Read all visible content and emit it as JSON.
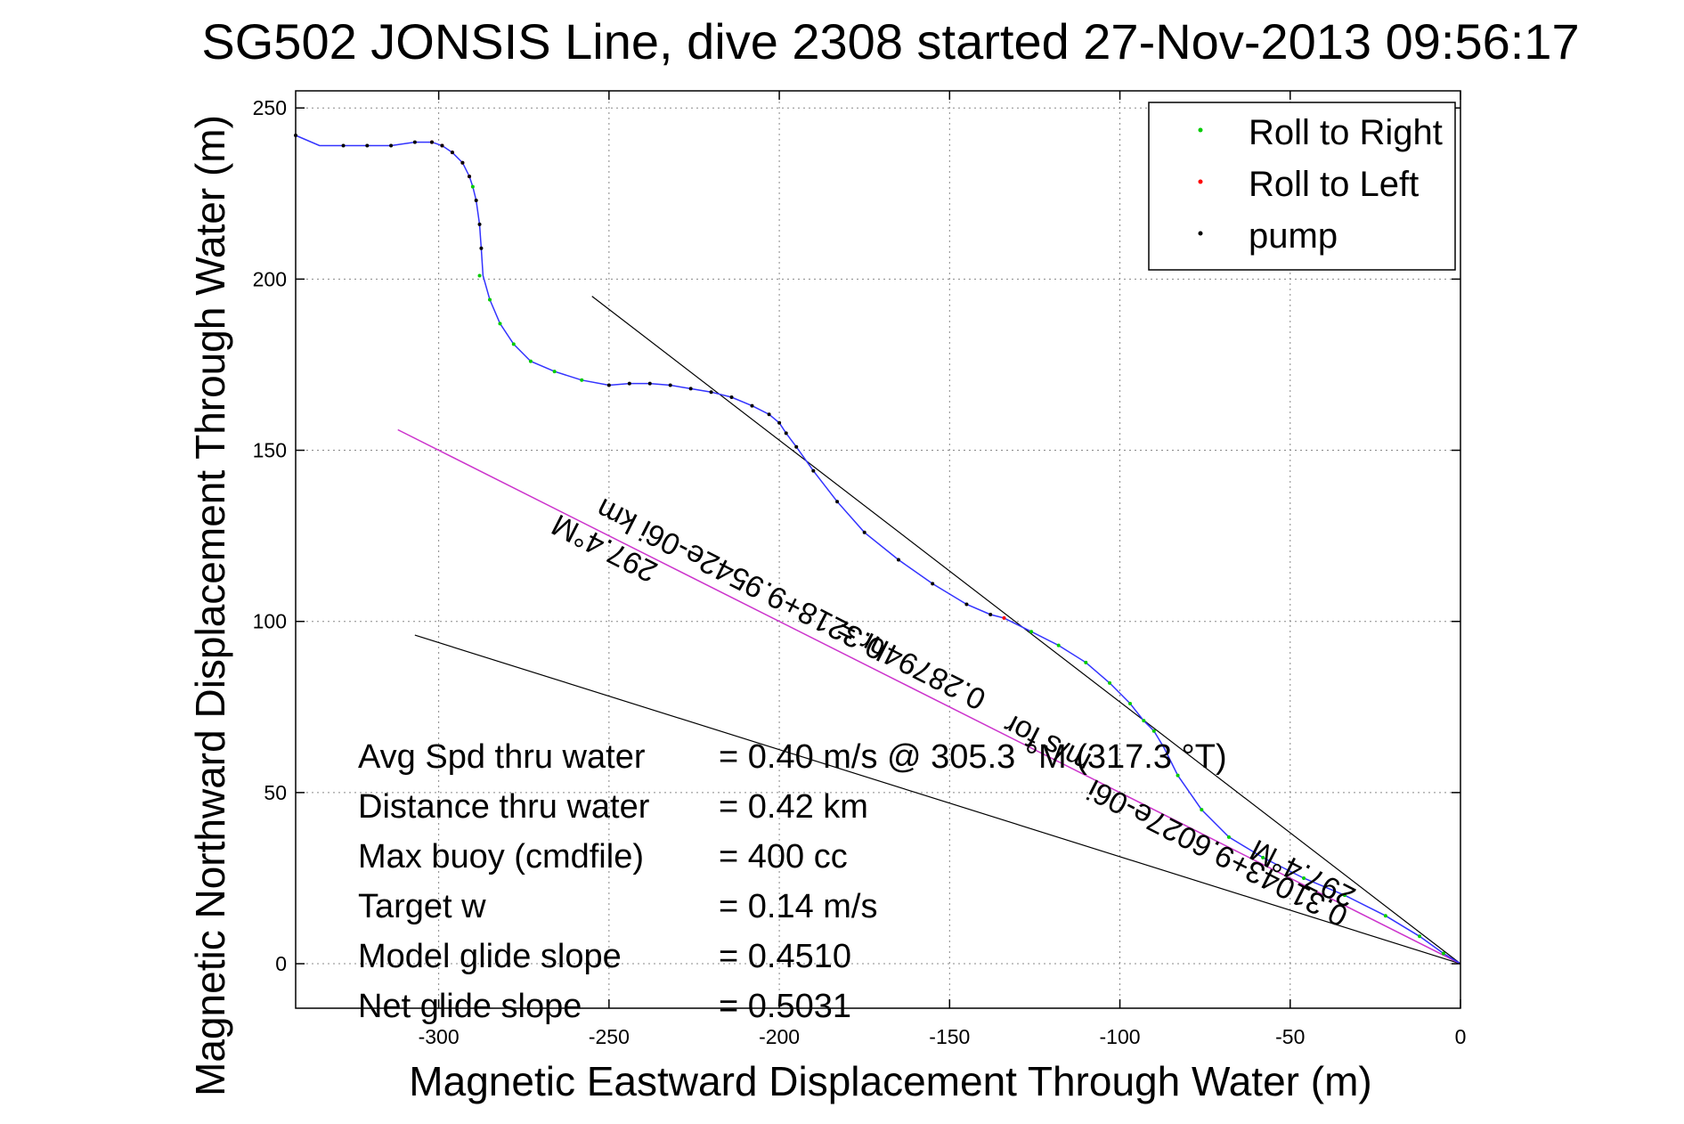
{
  "chart_data": {
    "type": "line",
    "title": "SG502 JONSIS Line, dive 2308 started 27-Nov-2013 09:56:17",
    "xlabel": "Magnetic Eastward Displacement Through Water (m)",
    "ylabel": "Magnetic Northward Displacement Through Water (m)",
    "xlim": [
      -342,
      0
    ],
    "ylim": [
      -13,
      255
    ],
    "xticks": [
      -300,
      -250,
      -200,
      -150,
      -100,
      -50,
      0
    ],
    "yticks": [
      0,
      50,
      100,
      150,
      200,
      250
    ],
    "grid": true,
    "legend_position": "top-right",
    "legend": [
      {
        "label": "Roll to Right",
        "color": "#00cc00"
      },
      {
        "label": "Roll to Left",
        "color": "#ff0000"
      },
      {
        "label": "pump",
        "color": "#000000"
      }
    ],
    "track": {
      "x": [
        -342,
        -335,
        -328,
        -321,
        -314,
        -307,
        -302,
        -299,
        -296,
        -293,
        -291,
        -290,
        -289,
        -288,
        -287.5,
        -287,
        -285,
        -282,
        -278,
        -273,
        -266,
        -258,
        -250,
        -244,
        -238,
        -232,
        -226,
        -220,
        -214,
        -208,
        -203,
        -200,
        -198,
        -195,
        -190,
        -183,
        -175,
        -165,
        -155,
        -145,
        -138,
        -134,
        -126,
        -118,
        -110,
        -103,
        -97,
        -93,
        -90,
        -87,
        -83,
        -76,
        -68,
        -58,
        -46,
        -34,
        -22,
        -12,
        -5,
        0
      ],
      "y": [
        242,
        239,
        239,
        239,
        239,
        240,
        240,
        239,
        237,
        234,
        230,
        227,
        223,
        216,
        209,
        201,
        194,
        187,
        181,
        176,
        173,
        170.5,
        169,
        169.5,
        169.5,
        169,
        168,
        167,
        165.5,
        163,
        160.5,
        158,
        155,
        151,
        144,
        135,
        126,
        118,
        111,
        105,
        102,
        101,
        97,
        93,
        88,
        82,
        76,
        71,
        68,
        63,
        55,
        45,
        37,
        31,
        25,
        20,
        14,
        8,
        3,
        0
      ]
    },
    "pump_points": {
      "x": [
        -342,
        -328,
        -321,
        -314,
        -307,
        -302,
        -299,
        -296,
        -293,
        -291,
        -289,
        -288,
        -287.5,
        -250,
        -244,
        -238,
        -232,
        -226,
        -220,
        -214,
        -208,
        -203,
        -200,
        -198,
        -195,
        -190,
        -183,
        -175,
        -165,
        -155,
        -145,
        -138
      ],
      "y": [
        242,
        239,
        239,
        239,
        240,
        240,
        239,
        237,
        234,
        230,
        223,
        216,
        209,
        169,
        169.5,
        169.5,
        169,
        168,
        167,
        165.5,
        163,
        160.5,
        158,
        155,
        151,
        144,
        135,
        126,
        118,
        111,
        105,
        102
      ]
    },
    "roll_left_points": {
      "x": [
        -302,
        -299,
        -296,
        -293,
        -291,
        -134
      ],
      "y": [
        240,
        239,
        237,
        234,
        230,
        101
      ]
    },
    "roll_right_points": {
      "x": [
        -290,
        -288,
        -285,
        -282,
        -278,
        -273,
        -266,
        -258,
        -126,
        -118,
        -110,
        -103,
        -97,
        -93,
        -90,
        -83,
        -76,
        -68,
        -58,
        -46,
        -34,
        -22,
        -12,
        -5
      ],
      "y": [
        227,
        201,
        194,
        187,
        181,
        176,
        173,
        170.5,
        97,
        93,
        88,
        82,
        76,
        71,
        68,
        55,
        45,
        37,
        31,
        25,
        20,
        14,
        8,
        3
      ]
    },
    "reference_lines": [
      {
        "x": [
          -255,
          0
        ],
        "y": [
          195,
          0
        ]
      },
      {
        "x": [
          -307,
          0
        ],
        "y": [
          96,
          0
        ]
      }
    ],
    "depth_averaged_current_line": {
      "x": [
        -312,
        0
      ],
      "y": [
        156,
        0
      ]
    },
    "annotations": [
      {
        "text": "297.4°M",
        "x": -250,
        "y": 124,
        "angle": 27
      },
      {
        "text": "0.3218+9.9542e-06i km",
        "x": -210,
        "y": 115,
        "angle": 27
      },
      {
        "text": "0.28794hr =",
        "x": -160,
        "y": 90,
        "angle": 27
      },
      {
        "text": "m/s for",
        "x": -120,
        "y": 67,
        "angle": 27
      },
      {
        "text": "0.31043+9.6027e-06i",
        "x": -70,
        "y": 35,
        "angle": 27
      },
      {
        "text": "297.4°M",
        "x": -45,
        "y": 29,
        "angle": 27
      }
    ]
  },
  "stats": [
    {
      "label": "Avg Spd thru water",
      "value": "=  0.40 m/s @ 305.3 °M (317.3 °T)"
    },
    {
      "label": "Distance thru water",
      "value": "=  0.42 km"
    },
    {
      "label": "Max buoy (cmdfile)",
      "value": "= 400 cc"
    },
    {
      "label": "Target w",
      "value": "= 0.14 m/s"
    },
    {
      "label": "Model glide slope",
      "value": "= 0.4510"
    },
    {
      "label": "Net glide slope",
      "value": "= 0.5031"
    }
  ],
  "colors": {
    "track": "#3333ff",
    "dac_line": "#cc33cc",
    "reference": "#000000",
    "grid": "#888888"
  }
}
